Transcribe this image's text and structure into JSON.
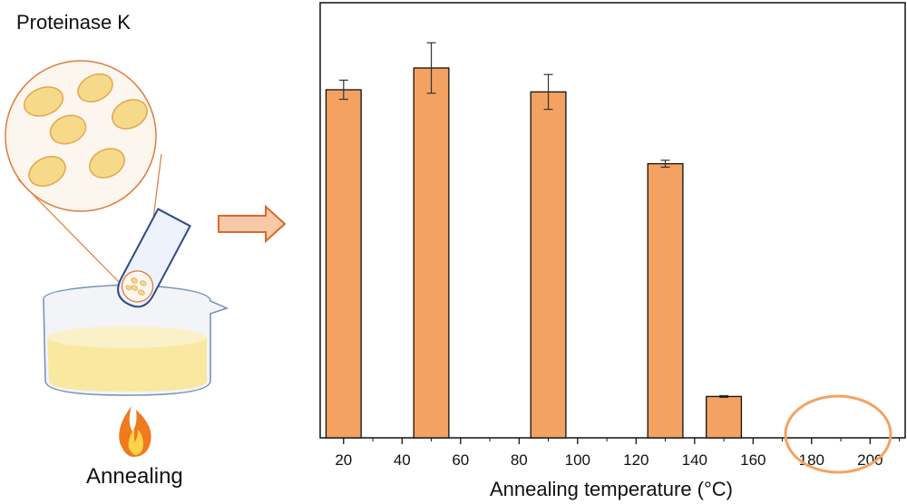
{
  "illustration": {
    "enzyme_label": "Proteinase K",
    "process_label": "Annealing",
    "icons": [
      "magnified-circle",
      "test-tube",
      "beaker",
      "flame",
      "arrow-right"
    ],
    "colors": {
      "orange": "#F4A261",
      "outline": "#E07B39",
      "liquid": "#F9E8A0",
      "tube": "#2F4A8A"
    }
  },
  "chart_data": {
    "type": "bar",
    "x": [
      20,
      50,
      90,
      130,
      150
    ],
    "values": [
      0.8,
      0.85,
      0.795,
      0.63,
      0.095
    ],
    "errors": [
      0.022,
      0.058,
      0.04,
      0.008,
      0.002
    ],
    "xlabel": "Annealing temperature (°C)",
    "ylabel": "",
    "xlim": [
      12,
      212
    ],
    "ylim": [
      0,
      1.0
    ],
    "xticks": [
      20,
      40,
      60,
      80,
      100,
      120,
      140,
      160,
      180,
      200
    ],
    "bar_width": 12,
    "bar_color": "#F4A261",
    "highlight": {
      "x_center": 190,
      "note": "circled region 180–200"
    }
  }
}
